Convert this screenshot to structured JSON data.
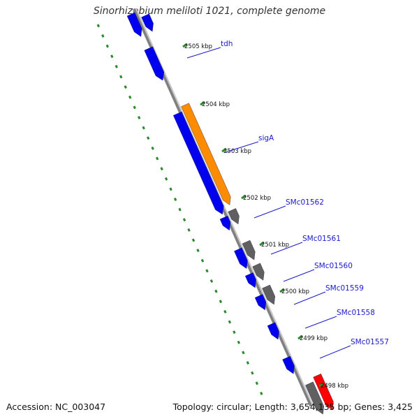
{
  "title": "Sinorhizobium meliloti 1021, complete genome",
  "footer": {
    "accession": "Accession: NC_003047",
    "genome_info": "Topology: circular; Length: 3,654,135 bp; Genes: 3,425"
  },
  "colors": {
    "backbone": "#808080",
    "gene_default": "#0000ee",
    "gene_highlight": "#ff8c00",
    "gene_rna": "#ff0000",
    "gene_other": "#606060",
    "ruler": "#2a8a2a",
    "label": "#1a1acc"
  },
  "ticks": [
    "2505 kbp",
    "2504 kbp",
    "2503 kbp",
    "2502 kbp",
    "2501 kbp",
    "2500 kbp",
    "2499 kbp",
    "2498 kbp"
  ],
  "gene_labels": [
    "tdh",
    "sigA",
    "SMc01562",
    "SMc01561",
    "SMc01560",
    "SMc01559",
    "SMc01558",
    "SMc01557"
  ]
}
